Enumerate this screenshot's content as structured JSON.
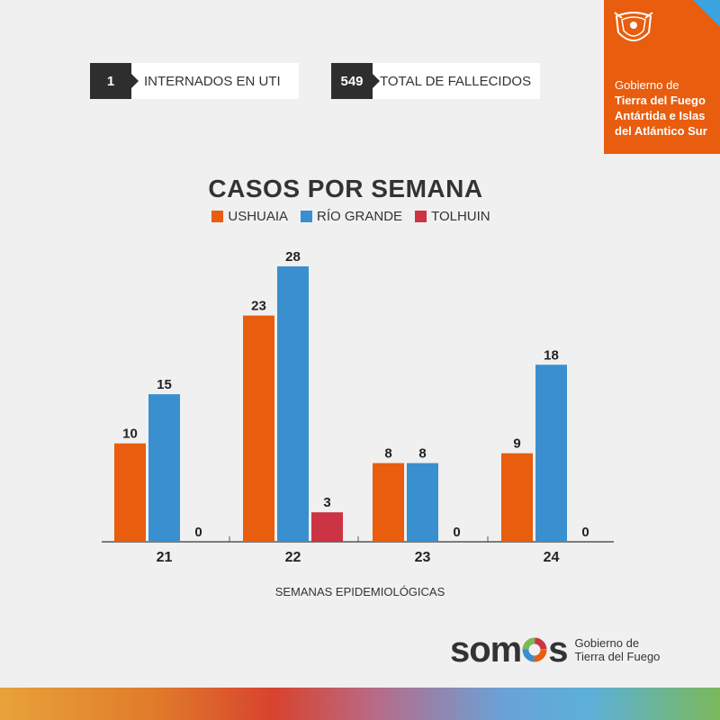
{
  "stats": [
    {
      "value": "1",
      "label": "INTERNADOS EN UTI"
    },
    {
      "value": "549",
      "label": "TOTAL DE FALLECIDOS"
    }
  ],
  "government_badge": {
    "line1": "Gobierno de",
    "line2": "Tierra del Fuego",
    "line3": "Antártida e Islas",
    "line4": "del Atlántico Sur"
  },
  "chart_data": {
    "type": "bar",
    "title": "CASOS POR SEMANA",
    "xlabel": "SEMANAS EPIDEMIOLÓGICAS",
    "ylabel": "",
    "categories": [
      "21",
      "22",
      "23",
      "24"
    ],
    "series": [
      {
        "name": "USHUAIA",
        "color": "#e85d0e",
        "values": [
          10,
          23,
          8,
          9
        ]
      },
      {
        "name": "RÍO GRANDE",
        "color": "#3a8fce",
        "values": [
          15,
          28,
          8,
          18
        ]
      },
      {
        "name": "TOLHUIN",
        "color": "#cc3344",
        "values": [
          0,
          3,
          0,
          0
        ]
      }
    ],
    "ylim": [
      0,
      28
    ],
    "grid": false,
    "legend": "top-center",
    "data_labels": true
  },
  "footer": {
    "brand": "somos",
    "sub_line1": "Gobierno de",
    "sub_line2": "Tierra del Fuego"
  }
}
